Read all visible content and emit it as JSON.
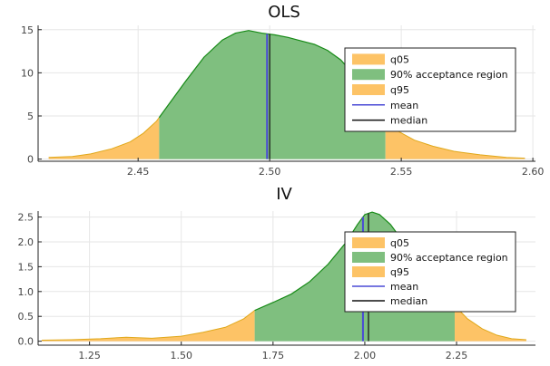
{
  "colors": {
    "q05": "#fdc366",
    "acceptance": "#7fbf7f",
    "q95": "#fdc366",
    "mean": "#4a4ad6",
    "median": "#111111",
    "density_line_lower": "#e0a81a",
    "density_line_center": "#168a16",
    "axis": "#222222",
    "grid": "#e6e6e6"
  },
  "chart_data": [
    {
      "type": "area",
      "title": "OLS",
      "xlim": [
        2.412,
        2.601
      ],
      "ylim": [
        -0.25,
        15.5
      ],
      "xticks": [
        2.45,
        2.5,
        2.55,
        2.6
      ],
      "xtick_labels": [
        "2.45",
        "2.50",
        "2.55",
        "2.60"
      ],
      "yticks": [
        0,
        5,
        10,
        15
      ],
      "ytick_labels": [
        "0",
        "5",
        "10",
        "15"
      ],
      "density": {
        "x": [
          2.416,
          2.425,
          2.432,
          2.44,
          2.447,
          2.452,
          2.457,
          2.462,
          2.468,
          2.475,
          2.482,
          2.487,
          2.492,
          2.497,
          2.502,
          2.507,
          2.512,
          2.517,
          2.522,
          2.527,
          2.532,
          2.537,
          2.541,
          2.544,
          2.549,
          2.555,
          2.562,
          2.57,
          2.58,
          2.59,
          2.597
        ],
        "y": [
          0.2,
          0.3,
          0.6,
          1.2,
          2.0,
          3.0,
          4.4,
          6.5,
          9.0,
          11.8,
          13.8,
          14.6,
          14.9,
          14.6,
          14.4,
          14.1,
          13.7,
          13.3,
          12.6,
          11.5,
          9.8,
          7.5,
          5.5,
          4.1,
          3.2,
          2.2,
          1.5,
          0.9,
          0.5,
          0.2,
          0.1
        ]
      },
      "q05": 2.458,
      "q95": 2.544,
      "mean": 2.499,
      "median": 2.5,
      "legend_position": "top-right",
      "legend": [
        "q05",
        "90% acceptance region",
        "q95",
        "mean",
        "median"
      ]
    },
    {
      "type": "area",
      "title": "IV",
      "xlim": [
        1.11,
        2.465
      ],
      "ylim": [
        -0.08,
        2.62
      ],
      "xticks": [
        1.25,
        1.5,
        1.75,
        2.0,
        2.25
      ],
      "xtick_labels": [
        "1.25",
        "1.50",
        "1.75",
        "2.00",
        "2.25"
      ],
      "yticks": [
        0.0,
        0.5,
        1.0,
        1.5,
        2.0,
        2.5
      ],
      "ytick_labels": [
        "0.0",
        "0.5",
        "1.0",
        "1.5",
        "2.0",
        "2.5"
      ],
      "density": {
        "x": [
          1.12,
          1.2,
          1.28,
          1.35,
          1.42,
          1.5,
          1.56,
          1.62,
          1.67,
          1.7,
          1.75,
          1.8,
          1.85,
          1.9,
          1.95,
          1.98,
          2.0,
          2.02,
          2.04,
          2.07,
          2.1,
          2.15,
          2.2,
          2.24,
          2.28,
          2.32,
          2.36,
          2.4,
          2.44
        ],
        "y": [
          0.02,
          0.03,
          0.05,
          0.08,
          0.06,
          0.1,
          0.18,
          0.28,
          0.45,
          0.62,
          0.78,
          0.95,
          1.2,
          1.55,
          2.0,
          2.35,
          2.55,
          2.6,
          2.55,
          2.35,
          2.05,
          1.6,
          1.05,
          0.75,
          0.45,
          0.25,
          0.12,
          0.05,
          0.03
        ]
      },
      "q05": 1.7,
      "q95": 2.245,
      "mean": 1.995,
      "median": 2.01,
      "legend_position": "top-right",
      "legend": [
        "q05",
        "90% acceptance region",
        "q95",
        "mean",
        "median"
      ]
    }
  ]
}
